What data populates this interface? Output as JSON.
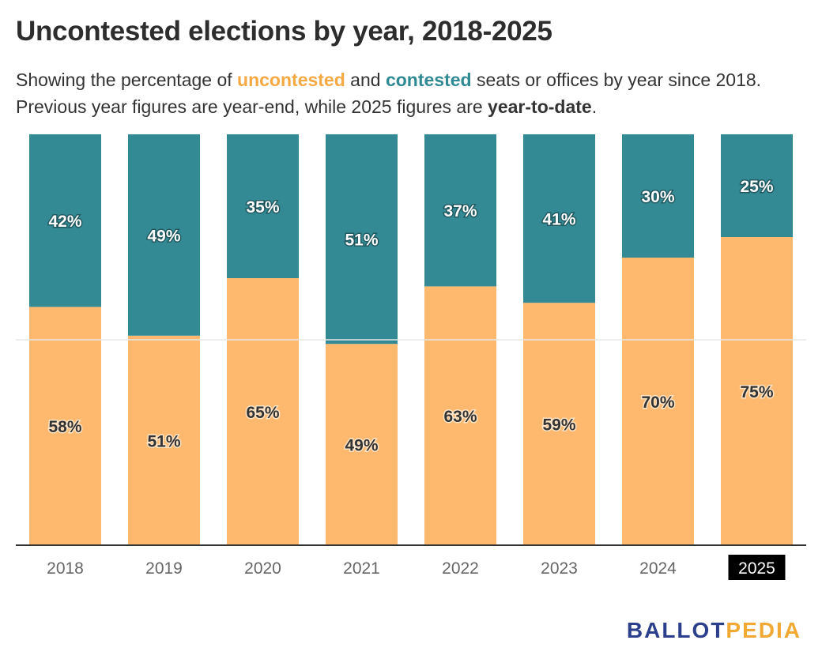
{
  "header": {
    "title": "Uncontested elections by year, 2018-2025",
    "subtitle": {
      "part1": "Showing the percentage of ",
      "uncontested": "uncontested",
      "part2": " and ",
      "contested": "contested",
      "part3": " seats or offices by year since 2018.",
      "line2_part1": "Previous year figures are year-end, while 2025 figures are ",
      "ytd": "year-to-date",
      "line2_part2": "."
    }
  },
  "colors": {
    "uncontested": "#ffb96e",
    "contested": "#338a95",
    "highlight_tick_bg": "#000000",
    "gridline": "#e6e6e6",
    "baseline": "#333333"
  },
  "chart_data": {
    "type": "bar",
    "stacked": true,
    "categories": [
      "2018",
      "2019",
      "2020",
      "2021",
      "2022",
      "2023",
      "2024",
      "2025"
    ],
    "highlighted_category": "2025",
    "series": [
      {
        "name": "uncontested",
        "values": [
          58,
          51,
          65,
          49,
          63,
          59,
          70,
          75
        ]
      },
      {
        "name": "contested",
        "values": [
          42,
          49,
          35,
          51,
          37,
          41,
          30,
          25
        ]
      }
    ],
    "data_labels": {
      "uncontested": [
        "58%",
        "51%",
        "65%",
        "49%",
        "63%",
        "59%",
        "70%",
        "75%"
      ],
      "contested": [
        "42%",
        "49%",
        "35%",
        "51%",
        "37%",
        "41%",
        "30%",
        "25%"
      ]
    },
    "ylim": [
      0,
      100
    ],
    "gridlines": [
      50
    ],
    "grid": true,
    "legend": "none (colors explained in subtitle)"
  },
  "branding": {
    "logo_part1": "BALLOT",
    "logo_part2": "PEDIA"
  }
}
